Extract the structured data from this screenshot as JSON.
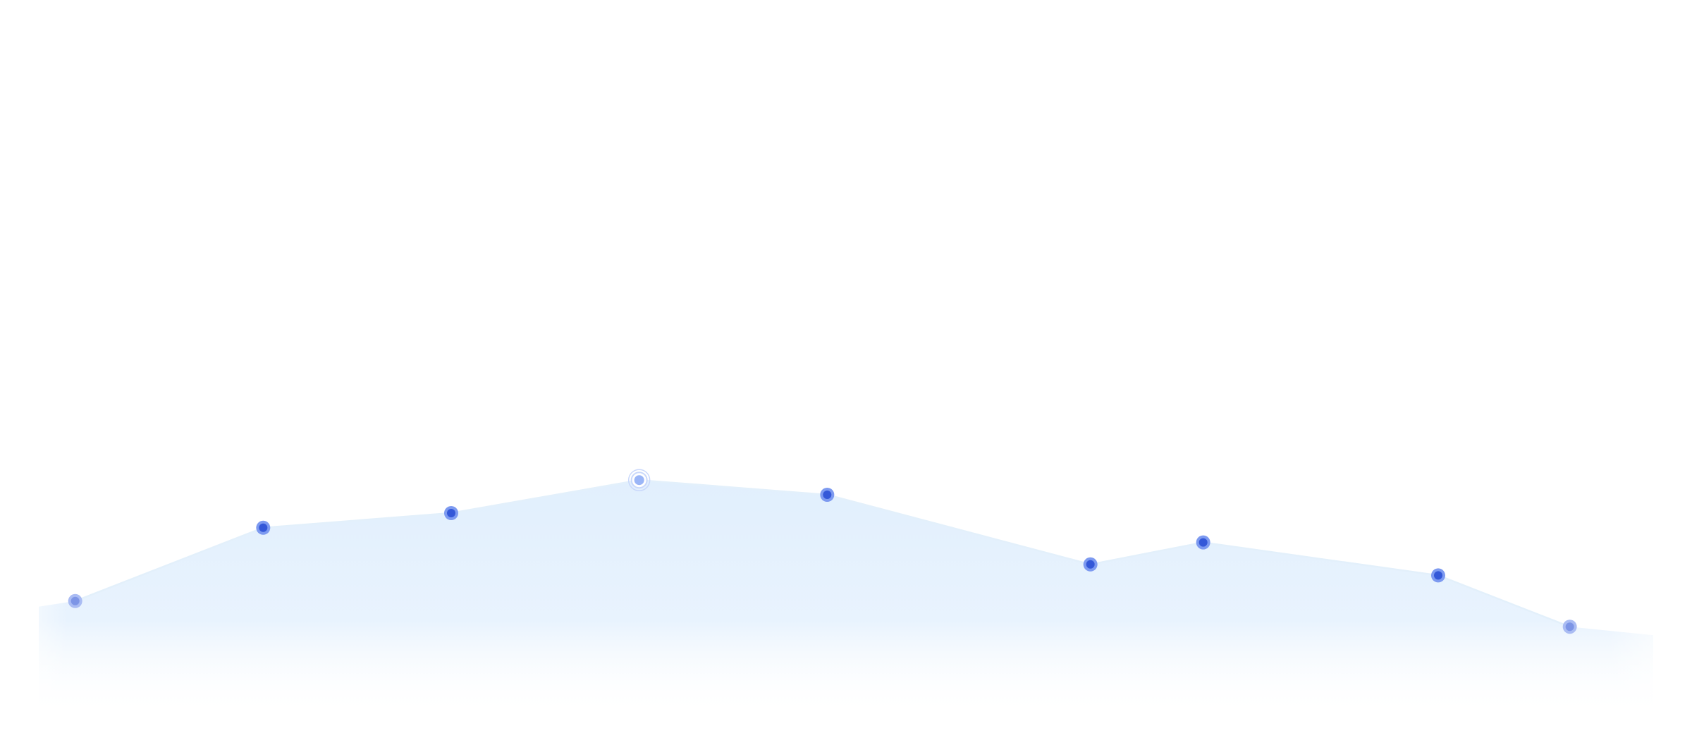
{
  "chart_data": {
    "type": "area",
    "title": "",
    "xlabel": "",
    "ylabel": "",
    "grid": false,
    "legend": "none",
    "x": [
      1,
      2,
      3,
      4,
      5,
      6.4,
      7,
      8.25,
      8.95
    ],
    "series": [
      {
        "values": [
          3.6,
          5.6,
          6.0,
          6.9,
          6.5,
          4.6,
          5.2,
          4.3,
          2.9
        ],
        "highlight_index": 3
      }
    ],
    "xlim": [
      0.6,
      9.6
    ],
    "ylim": [
      0,
      20
    ]
  },
  "colors": {
    "line": "#e3f0fb",
    "fill_top": "#e1effd",
    "fill_bottom": "#ffffff",
    "point_outer": "#7d9af0",
    "point_inner": "#3458d8",
    "point_faded_outer": "#aabcf3",
    "point_faded_inner": "#7d95e6",
    "highlight_outer": "#c9d8fb",
    "highlight_inner": "#9bb6f7"
  }
}
